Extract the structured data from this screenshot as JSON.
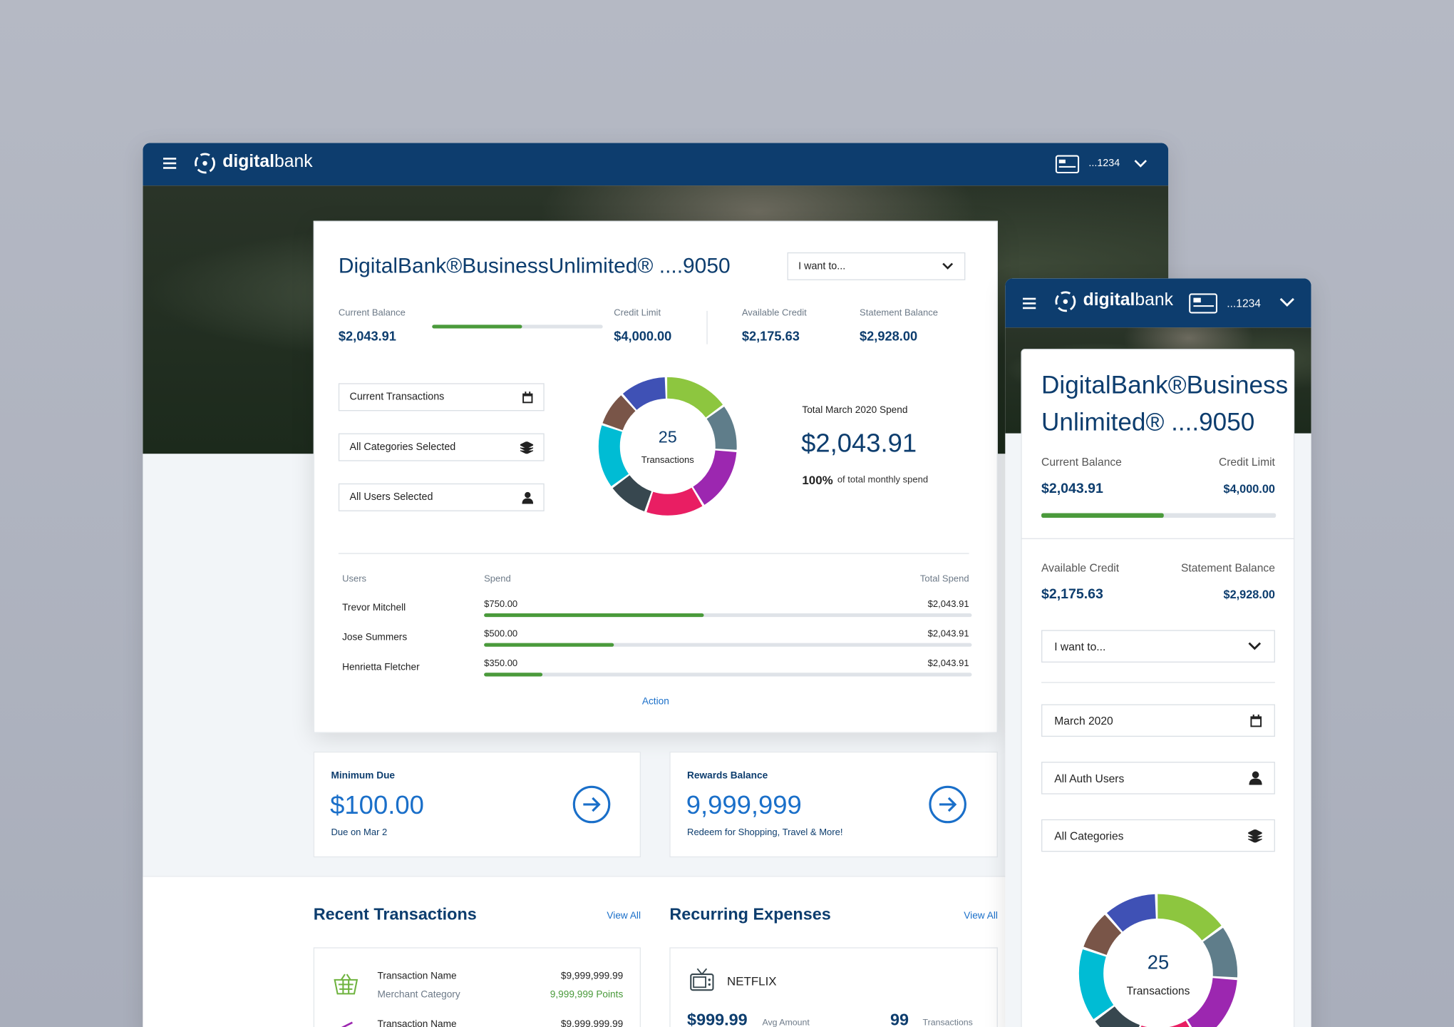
{
  "desktop": {
    "header": {
      "brand_bold": "digital",
      "brand": "bank",
      "account": "...1234"
    },
    "card": {
      "title": "DigitalBank®BusinessUnlimited® ....9050",
      "action_select": "I want to...",
      "balances": [
        {
          "label": "Current Balance",
          "value": "$2,043.91"
        },
        {
          "label": "Credit Limit",
          "value": "$4,000.00"
        },
        {
          "label": "Available Credit",
          "value": "$2,175.63"
        },
        {
          "label": "Statement Balance",
          "value": "$2,928.00"
        }
      ],
      "filters": [
        "Current Transactions",
        "All Categories Selected",
        "All Users Selected"
      ],
      "donut": {
        "count": "25",
        "label": "Transactions"
      },
      "spend": {
        "title": "Total March 2020 Spend",
        "amount": "$2,043.91",
        "percent": "100%",
        "percent_label": "of total monthly spend"
      },
      "users_table": {
        "headers": [
          "Users",
          "Spend",
          "Total Spend"
        ],
        "rows": [
          [
            "Trevor Mitchell",
            "$750.00",
            "$2,043.91"
          ],
          [
            "Jose Summers",
            "$500.00",
            "$2,043.91"
          ],
          [
            "Henrietta Fletcher",
            "$350.00",
            "$2,043.91"
          ]
        ]
      },
      "action": "Action"
    },
    "minimum_due": {
      "label": "Minimum Due",
      "amount": "$100.00",
      "note": "Due on Mar 2"
    },
    "rewards": {
      "label": "Rewards Balance",
      "amount": "9,999,999",
      "note": "Redeem for Shopping, Travel & More!"
    },
    "recent": {
      "title": "Recent Transactions",
      "link": "View All",
      "items": [
        {
          "name": "Transaction Name",
          "category": "Merchant Category",
          "amount": "$9,999,999.99",
          "points": "9,999,999 Points"
        },
        {
          "name": "Transaction Name",
          "amount": "$9,999,999.99"
        }
      ]
    },
    "recurring": {
      "title": "Recurring Expenses",
      "link": "View All",
      "items": [
        {
          "name": "NETFLIX",
          "amount": "$999.99",
          "amount_label": "Avg Amount",
          "count": "99",
          "count_label": "Transactions"
        }
      ]
    }
  },
  "mobile": {
    "header": {
      "brand_bold": "digital",
      "brand": "bank",
      "account": "...1234"
    },
    "title": "DigitalBank®Business Unlimited® ....9050",
    "balances": [
      {
        "label": "Current Balance",
        "value": "$2,043.91"
      },
      {
        "label": "Credit Limit",
        "value": "$4,000.00"
      },
      {
        "label": "Available Credit",
        "value": "$2,175.63"
      },
      {
        "label": "Statement Balance",
        "value": "$2,928.00"
      }
    ],
    "action_select": "I want to...",
    "filters": [
      "March 2020",
      "All Auth Users",
      "All Categories"
    ],
    "donut": {
      "count": "25",
      "label": "Transactions"
    }
  }
}
